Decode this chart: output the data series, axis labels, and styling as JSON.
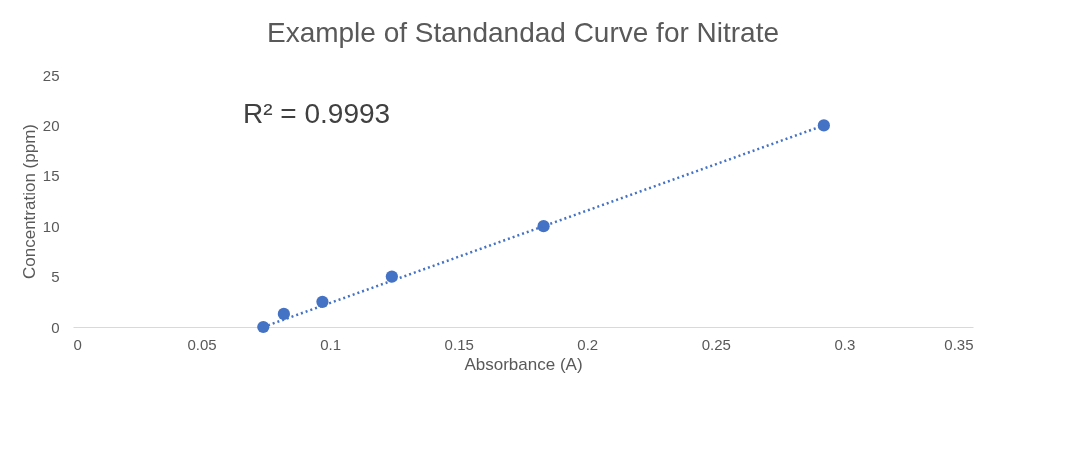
{
  "chart_data": {
    "type": "scatter",
    "title": "Example of Standandad Curve for Nitrate",
    "xlabel": "Absorbance (A)",
    "ylabel": "Concentration (ppm)",
    "x": [
      0.074,
      0.082,
      0.097,
      0.124,
      0.183,
      0.292
    ],
    "series": [
      {
        "color": "#4472c4",
        "values": [
          0,
          1.3,
          2.5,
          5,
          10,
          20
        ],
        "marker": "circle"
      },
      {
        "type": "line",
        "color": "#4472c4",
        "x": [
          0.074,
          0.292
        ],
        "values": [
          0,
          20
        ],
        "line_style": "dotted"
      }
    ],
    "annotations": [
      "R² = 0.9993"
    ],
    "xlim": [
      0,
      0.35
    ],
    "xticks": [
      0,
      0.05,
      0.1,
      0.15,
      0.2,
      0.25,
      0.3,
      0.35
    ],
    "ylim": [
      0,
      25
    ],
    "yticks": [
      0,
      5,
      10,
      15,
      20,
      25
    ],
    "grid": false
  }
}
